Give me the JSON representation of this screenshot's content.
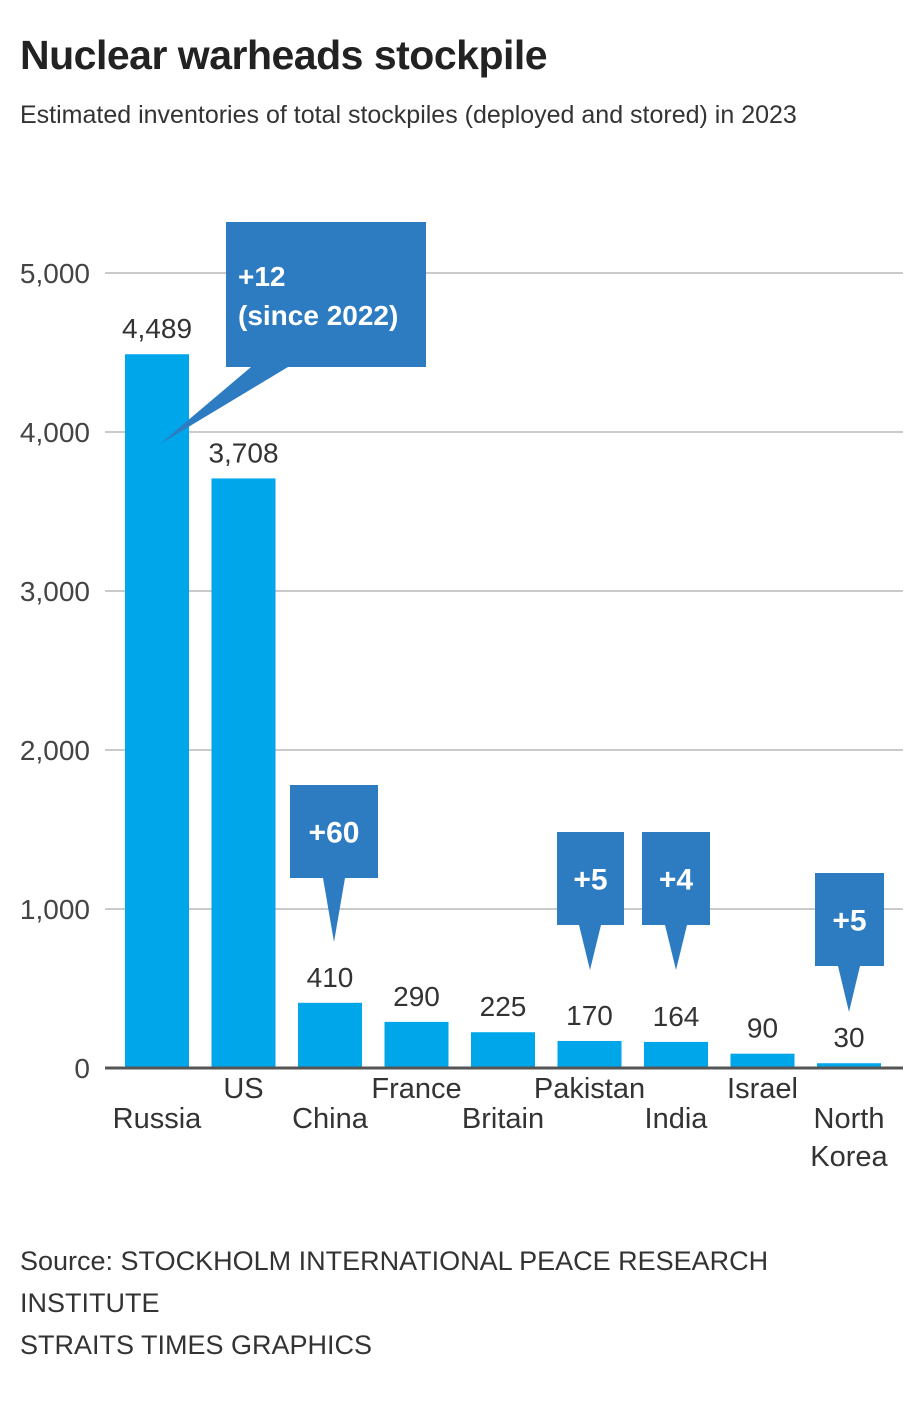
{
  "title": "Nuclear warheads stockpile",
  "subtitle": "Estimated inventories of total stockpiles (deployed and stored) in 2023",
  "colors": {
    "bar": "#00a6ea",
    "callout": "#2d7cc1",
    "grid": "#b8b8b8",
    "axis": "#555555",
    "text": "#333333"
  },
  "chart_data": {
    "type": "bar",
    "title": "Nuclear warheads stockpile",
    "xlabel": "",
    "ylabel": "",
    "ylim": [
      0,
      5000
    ],
    "yticks": [
      0,
      1000,
      2000,
      3000,
      4000,
      5000
    ],
    "ytick_labels": [
      "0",
      "1,000",
      "2,000",
      "3,000",
      "4,000",
      "5,000"
    ],
    "grid": true,
    "categories": [
      "Russia",
      "US",
      "China",
      "France",
      "Britain",
      "Pakistan",
      "India",
      "Israel",
      "North Korea"
    ],
    "values": [
      4489,
      3708,
      410,
      290,
      225,
      170,
      164,
      90,
      30
    ],
    "value_labels": [
      "4,489",
      "3,708",
      "410",
      "290",
      "225",
      "170",
      "164",
      "90",
      "30"
    ],
    "annotations": [
      {
        "category": "Russia",
        "text": "+12",
        "text2": "(since 2022)"
      },
      {
        "category": "China",
        "text": "+60"
      },
      {
        "category": "Pakistan",
        "text": "+5"
      },
      {
        "category": "India",
        "text": "+4"
      },
      {
        "category": "North Korea",
        "text": "+5"
      }
    ]
  },
  "source": {
    "line1": "Source: STOCKHOLM INTERNATIONAL PEACE RESEARCH",
    "line2": "INSTITUTE",
    "line3": "STRAITS TIMES GRAPHICS"
  }
}
